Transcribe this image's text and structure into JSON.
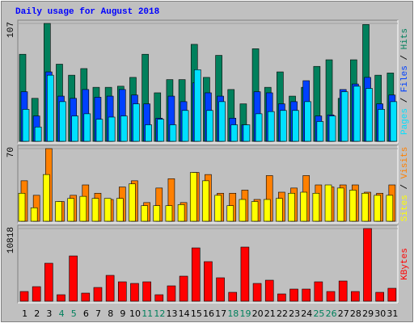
{
  "title": "Daily usage for August 2018",
  "chart_data": [
    {
      "type": "bar",
      "ylim": [
        0,
        107
      ],
      "yticks": [
        107
      ],
      "legend_separator": " / ",
      "series": [
        {
          "name": "Hits",
          "color": "#00805C",
          "values": [
            79,
            39,
            107,
            70,
            60,
            66,
            49,
            49,
            50,
            58,
            79,
            44,
            56,
            56,
            88,
            58,
            78,
            47,
            34,
            84,
            49,
            63,
            41,
            49,
            68,
            74,
            39,
            74,
            106,
            60,
            62
          ]
        },
        {
          "name": "Files",
          "color": "#0040FF",
          "values": [
            45,
            23,
            63,
            41,
            39,
            47,
            40,
            41,
            47,
            42,
            34,
            21,
            41,
            36,
            53,
            44,
            41,
            21,
            15,
            45,
            44,
            34,
            36,
            55,
            23,
            24,
            47,
            52,
            58,
            34,
            42
          ]
        },
        {
          "name": "Pages",
          "color": "#00E0FF",
          "values": [
            29,
            13,
            60,
            36,
            23,
            25,
            20,
            22,
            23,
            34,
            15,
            20,
            15,
            28,
            65,
            28,
            36,
            15,
            15,
            25,
            27,
            28,
            28,
            36,
            18,
            23,
            45,
            50,
            48,
            29,
            36
          ]
        }
      ]
    },
    {
      "type": "bar",
      "ylim": [
        0,
        70
      ],
      "yticks": [
        70
      ],
      "legend_separator": " / ",
      "series": [
        {
          "name": "Visits",
          "color": "#FF8000",
          "values": [
            39,
            25,
            70,
            19,
            25,
            35,
            27,
            21,
            33,
            39,
            18,
            32,
            41,
            18,
            47,
            45,
            27,
            27,
            30,
            21,
            44,
            28,
            32,
            44,
            35,
            33,
            35,
            35,
            28,
            27,
            35
          ]
        },
        {
          "name": "Sites",
          "color": "#FFFF00",
          "values": [
            27,
            13,
            45,
            19,
            22,
            24,
            22,
            22,
            22,
            36,
            15,
            15,
            15,
            16,
            47,
            39,
            25,
            15,
            21,
            19,
            21,
            22,
            27,
            28,
            27,
            35,
            32,
            30,
            27,
            25,
            25
          ]
        }
      ]
    },
    {
      "type": "bar",
      "ylim": [
        0,
        10818
      ],
      "yticks": [
        10818
      ],
      "categories": [
        "1",
        "2",
        "3",
        "4",
        "5",
        "6",
        "7",
        "8",
        "9",
        "10",
        "11",
        "12",
        "13",
        "14",
        "15",
        "16",
        "17",
        "18",
        "19",
        "20",
        "21",
        "22",
        "23",
        "24",
        "25",
        "26",
        "27",
        "28",
        "29",
        "30",
        "31"
      ],
      "label_colors": [
        "#000000",
        "#000000",
        "#000000",
        "#00805C",
        "#00805C",
        "#000000",
        "#000000",
        "#000000",
        "#000000",
        "#000000",
        "#00805C",
        "#00805C",
        "#000000",
        "#000000",
        "#000000",
        "#000000",
        "#000000",
        "#00805C",
        "#00805C",
        "#000000",
        "#000000",
        "#000000",
        "#000000",
        "#000000",
        "#00805C",
        "#00805C",
        "#000000",
        "#000000",
        "#000000",
        "#000000",
        "#000000"
      ],
      "series": [
        {
          "name": "KBytes",
          "color": "#FF0000",
          "values": [
            1442,
            2164,
            5650,
            962,
            6732,
            1202,
            2043,
            3846,
            2885,
            2644,
            2885,
            962,
            2284,
            3726,
            7933,
            5890,
            3486,
            1322,
            8054,
            2644,
            3125,
            1082,
            1803,
            1803,
            2885,
            1442,
            3005,
            1442,
            10818,
            1322,
            1923
          ]
        }
      ]
    }
  ]
}
